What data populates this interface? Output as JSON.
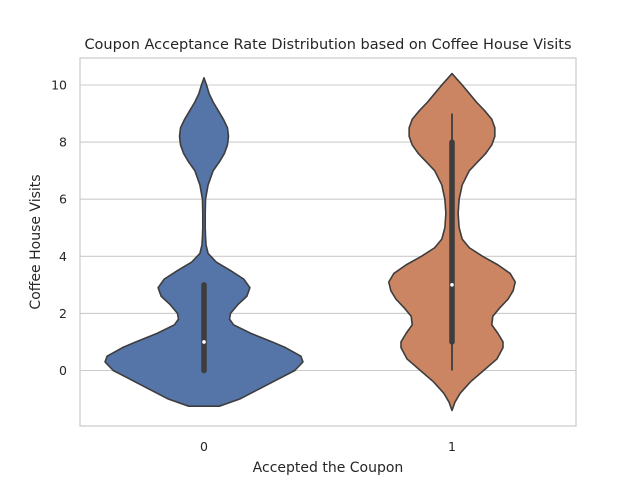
{
  "chart_data": {
    "type": "violin",
    "title": "Coupon Acceptance Rate Distribution based on Coffee House Visits",
    "xlabel": "Accepted the Coupon",
    "ylabel": "Coffee House Visits",
    "categories": [
      "0",
      "1"
    ],
    "ylim": [
      -2,
      11
    ],
    "yticks": [
      0,
      2,
      4,
      6,
      8,
      10
    ],
    "grid": "horizontal",
    "colors": [
      "#5574a8",
      "#cc8562"
    ],
    "outline_color": "#3d3d3d",
    "violins": [
      {
        "category": "0",
        "color": "#5574a8",
        "kde_y": [
          -1.25,
          -1.0,
          -0.5,
          0.0,
          0.3,
          0.5,
          0.8,
          1.0,
          1.3,
          1.6,
          1.8,
          2.0,
          2.3,
          2.6,
          2.9,
          3.2,
          3.5,
          3.8,
          4.1,
          4.4,
          4.7,
          5.0,
          5.5,
          6.0,
          6.5,
          7.0,
          7.3,
          7.6,
          7.9,
          8.2,
          8.5,
          8.8,
          9.1,
          9.4,
          9.7,
          10.0,
          10.25
        ],
        "width": [
          0.15,
          0.35,
          0.62,
          0.89,
          0.97,
          0.95,
          0.8,
          0.67,
          0.46,
          0.29,
          0.25,
          0.26,
          0.33,
          0.42,
          0.45,
          0.39,
          0.26,
          0.12,
          0.04,
          0.02,
          0.015,
          0.012,
          0.012,
          0.015,
          0.04,
          0.09,
          0.15,
          0.2,
          0.23,
          0.24,
          0.23,
          0.19,
          0.14,
          0.09,
          0.05,
          0.025,
          0.0
        ],
        "box": {
          "q1": 0,
          "median": 1,
          "q3": 3,
          "whisker_low": 0,
          "whisker_high": 3
        }
      },
      {
        "category": "1",
        "color": "#cc8562",
        "kde_y": [
          -1.4,
          -1.1,
          -0.8,
          -0.4,
          0.0,
          0.4,
          0.8,
          1.0,
          1.3,
          1.6,
          1.9,
          2.2,
          2.5,
          2.8,
          3.1,
          3.4,
          3.7,
          4.0,
          4.3,
          4.6,
          5.0,
          5.5,
          6.0,
          6.5,
          7.0,
          7.3,
          7.6,
          7.9,
          8.2,
          8.5,
          8.8,
          9.1,
          9.4,
          9.7,
          10.0,
          10.2,
          10.4
        ],
        "width": [
          0.0,
          0.03,
          0.08,
          0.18,
          0.31,
          0.44,
          0.5,
          0.5,
          0.45,
          0.39,
          0.4,
          0.47,
          0.55,
          0.6,
          0.62,
          0.57,
          0.45,
          0.3,
          0.17,
          0.1,
          0.07,
          0.06,
          0.07,
          0.1,
          0.17,
          0.25,
          0.33,
          0.39,
          0.42,
          0.42,
          0.39,
          0.32,
          0.24,
          0.17,
          0.1,
          0.05,
          0.0
        ],
        "box": {
          "q1": 1,
          "median": 3,
          "q3": 8,
          "whisker_low": 0,
          "whisker_high": 9
        }
      }
    ]
  }
}
